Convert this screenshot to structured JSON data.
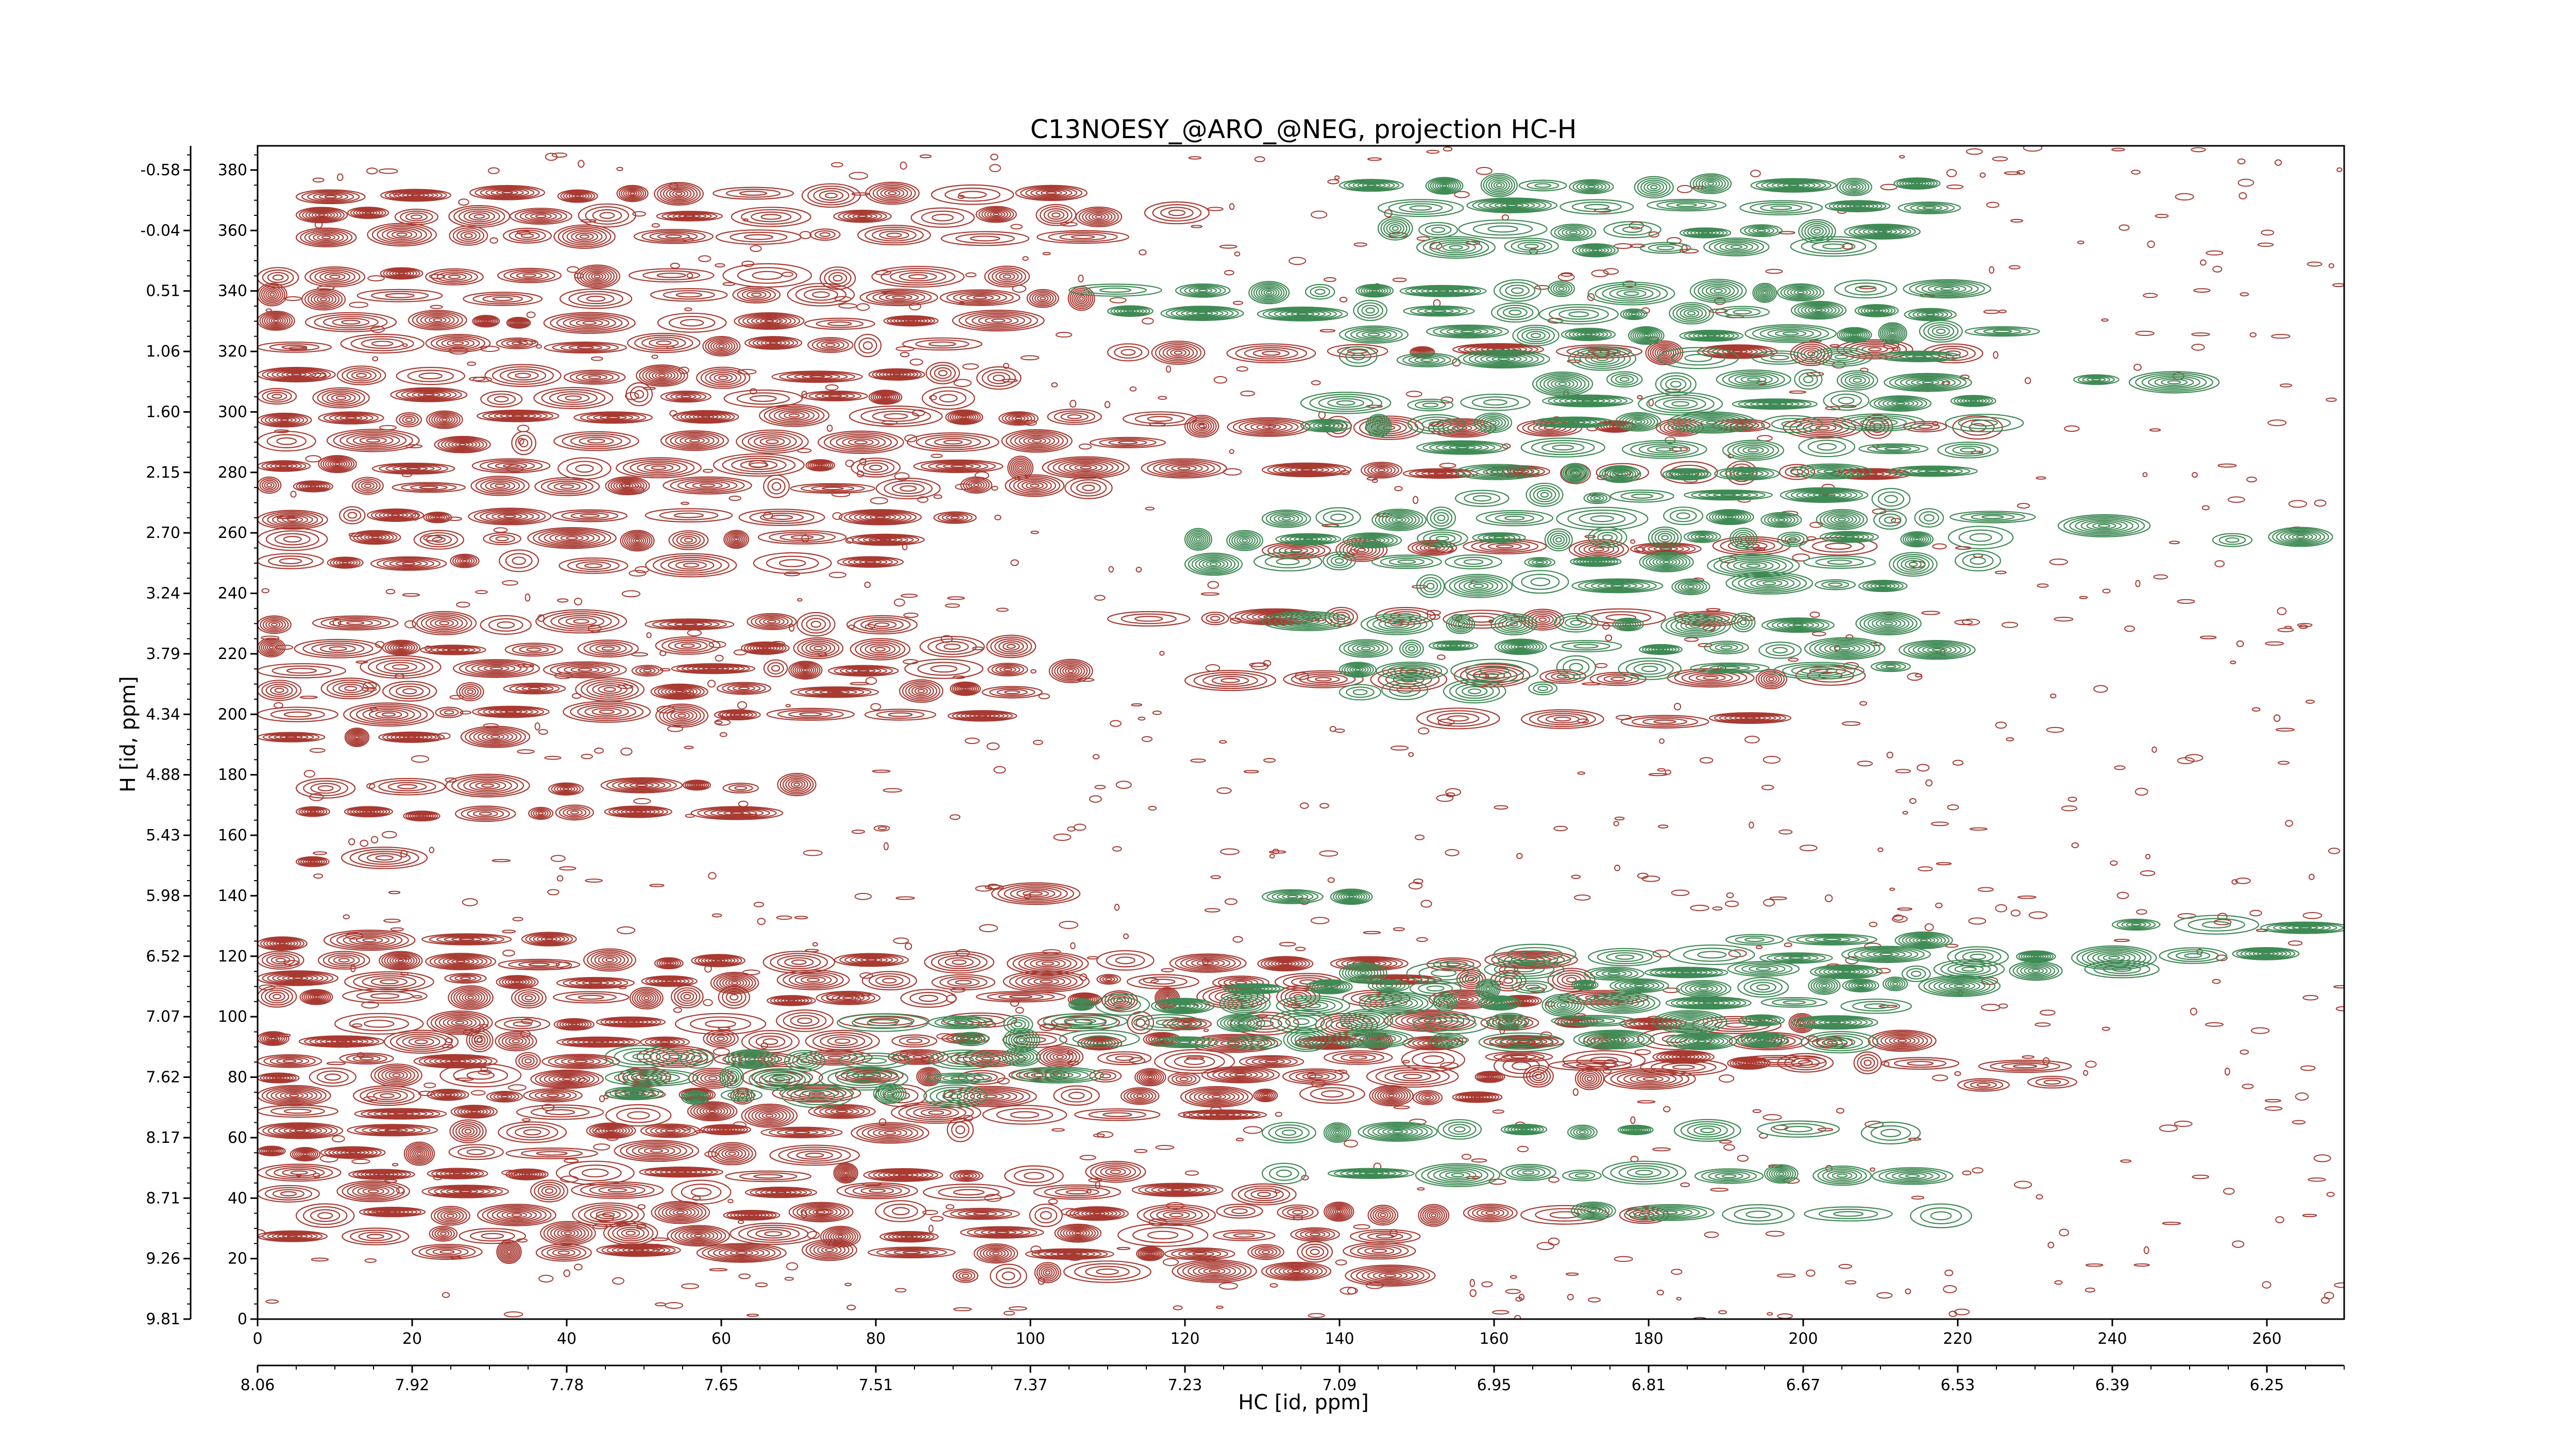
{
  "chart_data": {
    "type": "contour",
    "title": "C13NOESY_@ARO_@NEG, projection HC-H",
    "xlabel": "HC [id, ppm]",
    "ylabel": "H [id, ppm]",
    "x_index_ticks": [
      "0",
      "20",
      "40",
      "60",
      "80",
      "100",
      "120",
      "140",
      "160",
      "180",
      "200",
      "220",
      "240",
      "260"
    ],
    "x_ppm_ticks": [
      "8.06",
      "7.92",
      "7.78",
      "7.65",
      "7.51",
      "7.37",
      "7.23",
      "7.09",
      "6.95",
      "6.81",
      "6.67",
      "6.53",
      "6.39",
      "6.25"
    ],
    "y_index_ticks": [
      "0",
      "20",
      "40",
      "60",
      "80",
      "100",
      "120",
      "140",
      "160",
      "180",
      "200",
      "220",
      "240",
      "260",
      "280",
      "300",
      "320",
      "340",
      "360",
      "380"
    ],
    "y_ppm_ticks": [
      "9.81",
      "9.26",
      "8.71",
      "8.17",
      "7.62",
      "7.07",
      "6.52",
      "5.98",
      "5.43",
      "4.88",
      "4.34",
      "3.79",
      "3.24",
      "2.70",
      "2.15",
      "1.60",
      "1.06",
      "0.51",
      "-0.04",
      "-0.58"
    ],
    "xlim": [
      0,
      270
    ],
    "ylim": [
      0,
      388
    ],
    "grid": false,
    "series": [
      {
        "sign": "positive",
        "color": "#a83a32",
        "peak_bands": [
          {
            "y": 372,
            "x": [
              5,
              100
            ]
          },
          {
            "y": 365,
            "x": [
              5,
              120
            ]
          },
          {
            "y": 358,
            "x": [
              5,
              110
            ]
          },
          {
            "y": 345,
            "x": [
              0,
              100
            ]
          },
          {
            "y": 338,
            "x": [
              0,
              105
            ]
          },
          {
            "y": 330,
            "x": [
              0,
              95
            ]
          },
          {
            "y": 322,
            "x": [
              0,
              90
            ]
          },
          {
            "y": 312,
            "x": [
              0,
              95
            ]
          },
          {
            "y": 305,
            "x": [
              0,
              90
            ]
          },
          {
            "y": 298,
            "x": [
              0,
              115
            ]
          },
          {
            "y": 290,
            "x": [
              0,
              110
            ]
          },
          {
            "y": 282,
            "x": [
              0,
              120
            ]
          },
          {
            "y": 275,
            "x": [
              0,
              110
            ]
          },
          {
            "y": 265,
            "x": [
              0,
              90
            ]
          },
          {
            "y": 258,
            "x": [
              0,
              85
            ]
          },
          {
            "y": 250,
            "x": [
              0,
              80
            ]
          },
          {
            "y": 230,
            "x": [
              0,
              85
            ]
          },
          {
            "y": 222,
            "x": [
              0,
              100
            ]
          },
          {
            "y": 215,
            "x": [
              0,
              105
            ]
          },
          {
            "y": 208,
            "x": [
              0,
              95
            ]
          },
          {
            "y": 200,
            "x": [
              0,
              90
            ]
          },
          {
            "y": 192,
            "x": [
              0,
              30
            ]
          },
          {
            "y": 176,
            "x": [
              5,
              70
            ]
          },
          {
            "y": 167,
            "x": [
              5,
              60
            ]
          },
          {
            "y": 152,
            "x": [
              5,
              20
            ]
          },
          {
            "y": 140,
            "x": [
              95,
              105
            ]
          },
          {
            "y": 125,
            "x": [
              0,
              40
            ]
          },
          {
            "y": 118,
            "x": [
              0,
              160
            ]
          },
          {
            "y": 112,
            "x": [
              0,
              170
            ]
          },
          {
            "y": 106,
            "x": [
              0,
              180
            ]
          },
          {
            "y": 98,
            "x": [
              10,
              200
            ]
          },
          {
            "y": 92,
            "x": [
              0,
              210
            ]
          },
          {
            "y": 86,
            "x": [
              0,
              200
            ]
          },
          {
            "y": 80,
            "x": [
              0,
              180
            ]
          },
          {
            "y": 74,
            "x": [
              0,
              160
            ]
          },
          {
            "y": 68,
            "x": [
              0,
              120
            ]
          },
          {
            "y": 62,
            "x": [
              0,
              90
            ]
          },
          {
            "y": 55,
            "x": [
              0,
              80
            ]
          },
          {
            "y": 48,
            "x": [
              0,
              110
            ]
          },
          {
            "y": 42,
            "x": [
              0,
              130
            ]
          },
          {
            "y": 35,
            "x": [
              5,
              180
            ]
          },
          {
            "y": 28,
            "x": [
              0,
              150
            ]
          },
          {
            "y": 22,
            "x": [
              20,
              150
            ]
          },
          {
            "y": 15,
            "x": [
              90,
              150
            ]
          },
          {
            "y": 320,
            "x": [
              110,
              220
            ]
          },
          {
            "y": 295,
            "x": [
              120,
              220
            ]
          },
          {
            "y": 280,
            "x": [
              130,
              215
            ]
          },
          {
            "y": 255,
            "x": [
              130,
              210
            ]
          },
          {
            "y": 232,
            "x": [
              110,
              190
            ]
          },
          {
            "y": 212,
            "x": [
              120,
              200
            ]
          },
          {
            "y": 198,
            "x": [
              150,
              200
            ]
          },
          {
            "y": 84,
            "x": [
              160,
              230
            ]
          },
          {
            "y": 78,
            "x": [
              220,
              230
            ]
          }
        ]
      },
      {
        "sign": "negative",
        "color": "#3f8a55",
        "peak_bands": [
          {
            "y": 375,
            "x": [
              140,
              215
            ]
          },
          {
            "y": 368,
            "x": [
              145,
              220
            ]
          },
          {
            "y": 360,
            "x": [
              145,
              215
            ]
          },
          {
            "y": 354,
            "x": [
              150,
              210
            ]
          },
          {
            "y": 340,
            "x": [
              105,
              222
            ]
          },
          {
            "y": 333,
            "x": [
              110,
              222
            ]
          },
          {
            "y": 326,
            "x": [
              140,
              222
            ]
          },
          {
            "y": 318,
            "x": [
              140,
              222
            ]
          },
          {
            "y": 310,
            "x": [
              165,
              222
            ]
          },
          {
            "y": 303,
            "x": [
              135,
              222
            ]
          },
          {
            "y": 296,
            "x": [
              135,
              222
            ]
          },
          {
            "y": 288,
            "x": [
              150,
              222
            ]
          },
          {
            "y": 280,
            "x": [
              155,
              220
            ]
          },
          {
            "y": 272,
            "x": [
              155,
              210
            ]
          },
          {
            "y": 265,
            "x": [
              130,
              222
            ]
          },
          {
            "y": 258,
            "x": [
              120,
              222
            ]
          },
          {
            "y": 250,
            "x": [
              120,
              222
            ]
          },
          {
            "y": 243,
            "x": [
              150,
              215
            ]
          },
          {
            "y": 230,
            "x": [
              130,
              215
            ]
          },
          {
            "y": 222,
            "x": [
              140,
              215
            ]
          },
          {
            "y": 215,
            "x": [
              140,
              215
            ]
          },
          {
            "y": 208,
            "x": [
              140,
              165
            ]
          },
          {
            "y": 140,
            "x": [
              130,
              140
            ]
          },
          {
            "y": 125,
            "x": [
              190,
              222
            ]
          },
          {
            "y": 120,
            "x": [
              160,
              262
            ]
          },
          {
            "y": 115,
            "x": [
              140,
              240
            ]
          },
          {
            "y": 110,
            "x": [
              125,
              222
            ]
          },
          {
            "y": 104,
            "x": [
              105,
              215
            ]
          },
          {
            "y": 98,
            "x": [
              75,
              200
            ]
          },
          {
            "y": 92,
            "x": [
              90,
              200
            ]
          },
          {
            "y": 86,
            "x": [
              45,
              100
            ]
          },
          {
            "y": 80,
            "x": [
              45,
              100
            ]
          },
          {
            "y": 74,
            "x": [
              45,
              90
            ]
          },
          {
            "y": 62,
            "x": [
              130,
              210
            ]
          },
          {
            "y": 48,
            "x": [
              130,
              210
            ]
          },
          {
            "y": 35,
            "x": [
              170,
              215
            ]
          },
          {
            "y": 130,
            "x": [
              240,
              262
            ]
          },
          {
            "y": 258,
            "x": [
              253,
              262
            ]
          },
          {
            "y": 310,
            "x": [
              235,
              245
            ]
          },
          {
            "y": 262,
            "x": [
              233,
              245
            ]
          }
        ]
      }
    ]
  }
}
